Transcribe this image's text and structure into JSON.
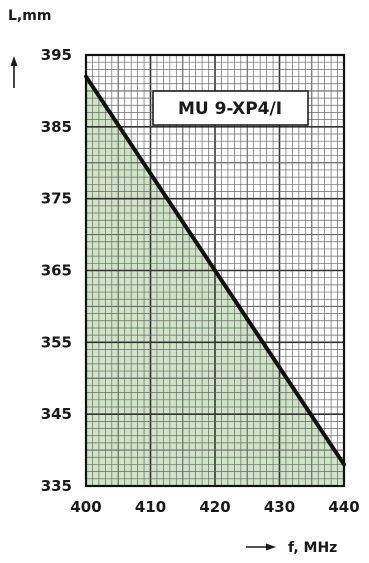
{
  "chart_data": {
    "type": "area",
    "title": "",
    "xlabel": "f, MHz",
    "ylabel": "L,mm",
    "xlim": [
      400,
      440
    ],
    "ylim": [
      335,
      395
    ],
    "x_ticks": [
      400,
      410,
      420,
      430,
      440
    ],
    "y_ticks": [
      335,
      345,
      355,
      365,
      375,
      385,
      395
    ],
    "grid": true,
    "legend_position": "top-right",
    "series": [
      {
        "name": "MU 9-XP4/I",
        "x": [
          400,
          440
        ],
        "y": [
          392,
          338
        ]
      }
    ]
  },
  "colors": {
    "fill": "#cfe3c6",
    "line": "#111111",
    "grid_major": "#333333",
    "grid_minor": "#6a6a6a",
    "frame": "#111111"
  }
}
